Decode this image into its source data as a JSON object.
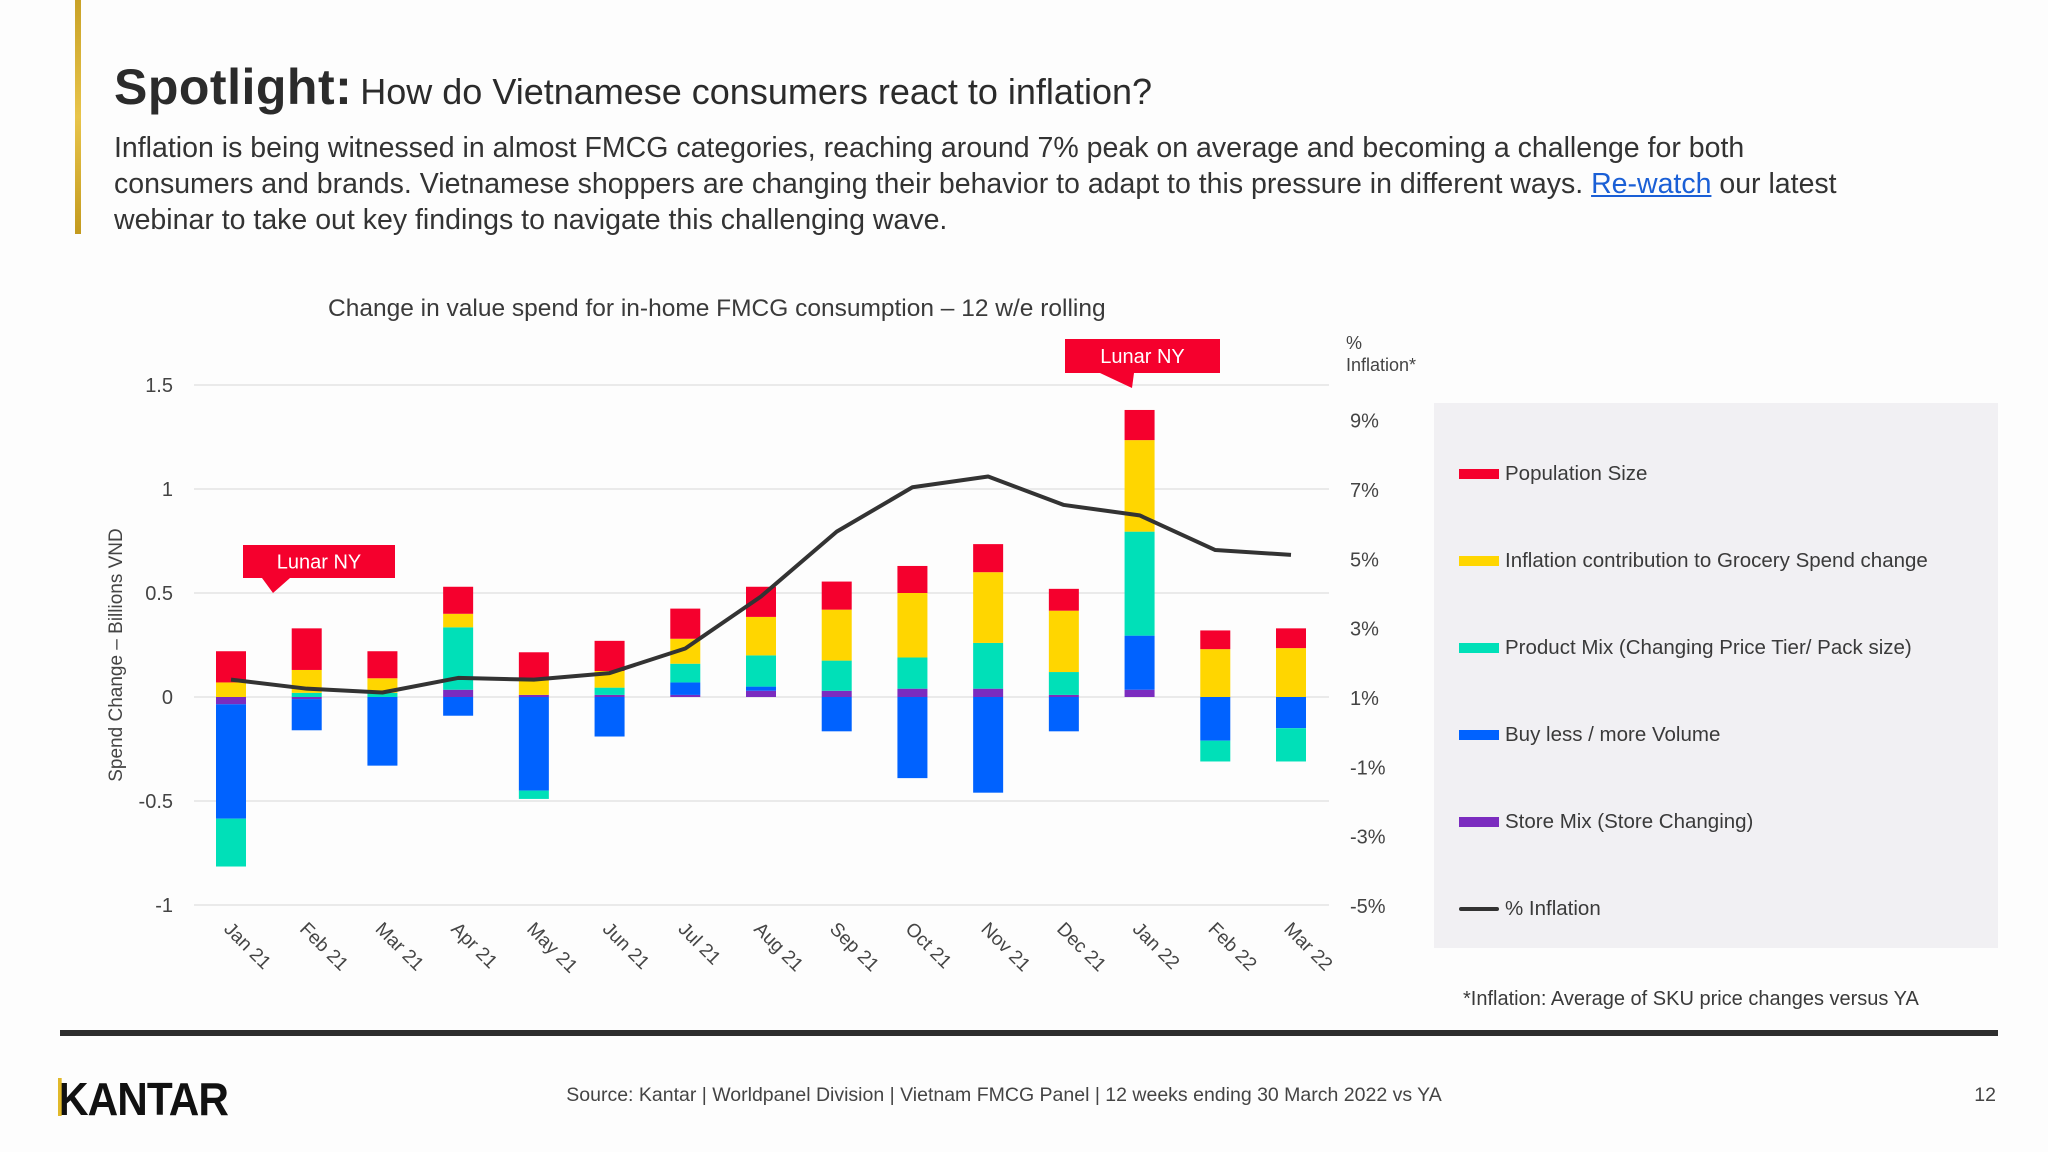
{
  "header": {
    "title_bold": "Spotlight:",
    "title_rest": "How do Vietnamese consumers react to inflation?",
    "paragraph_line1": "Inflation is being witnessed in almost FMCG categories, reaching around 7% peak on average and becoming a challenge for both",
    "paragraph_line2_before": "consumers and brands. Vietnamese shoppers are changing their behavior to adapt to this pressure in different ways. ",
    "paragraph_link": "Re-watch",
    "paragraph_line2_after": " our latest",
    "paragraph_line3": "webinar to take out key findings to navigate this challenging wave."
  },
  "chart_data": {
    "type": "bar",
    "stacked": true,
    "title": "Change in value spend for in-home FMCG consumption – 12 w/e rolling",
    "ylabel": "Spend Change – Billions VND",
    "y2label": "% Inflation*",
    "ylim": [
      -1,
      1.5
    ],
    "yticks": [
      "1.5",
      "1",
      "0.5",
      "0",
      "-0.5",
      "-1"
    ],
    "y2ticks": [
      "9%",
      "7%",
      "5%",
      "3%",
      "1%",
      "-1%",
      "-3%",
      "-5%"
    ],
    "y2lim": [
      -5,
      10
    ],
    "grid": true,
    "legend_position": "right",
    "categories": [
      "Jan 21",
      "Feb 21",
      "Mar 21",
      "Apr 21",
      "May 21",
      "Jun 21",
      "Jul 21",
      "Aug 21",
      "Sep 21",
      "Oct 21",
      "Nov 21",
      "Dec 21",
      "Jan 22",
      "Feb 22",
      "Mar 22"
    ],
    "series": [
      {
        "name": "Store Mix (Store Changing)",
        "color": "#7b2cbf",
        "values": [
          -0.035,
          -0.01,
          0,
          0.035,
          0.01,
          0.01,
          0.01,
          0.03,
          0.03,
          0.04,
          0.04,
          0.01,
          0.035,
          0,
          0
        ]
      },
      {
        "name": "Buy less / more Volume",
        "color": "#0062ff",
        "values": [
          -0.55,
          -0.15,
          -0.33,
          -0.09,
          -0.45,
          -0.19,
          0.06,
          0.02,
          -0.165,
          -0.39,
          -0.46,
          -0.165,
          0.26,
          -0.21,
          -0.15
        ]
      },
      {
        "name": "Product Mix (Changing Price Tier/ Pack size)",
        "color": "#00e0b8",
        "values": [
          -0.23,
          0.02,
          0.02,
          0.3,
          -0.04,
          0.035,
          0.09,
          0.15,
          0.145,
          0.15,
          0.22,
          0.11,
          0.5,
          -0.1,
          -0.16
        ]
      },
      {
        "name": "Inflation contribution to Grocery Spend change",
        "color": "#ffd600",
        "values": [
          0.07,
          0.11,
          0.07,
          0.065,
          0.07,
          0.08,
          0.12,
          0.185,
          0.245,
          0.31,
          0.34,
          0.295,
          0.44,
          0.23,
          0.235
        ]
      },
      {
        "name": "Population Size",
        "color": "#f5002d",
        "values": [
          0.15,
          0.2,
          0.13,
          0.13,
          0.135,
          0.145,
          0.145,
          0.145,
          0.135,
          0.13,
          0.135,
          0.105,
          0.145,
          0.09,
          0.095
        ]
      }
    ],
    "line": {
      "name": "% Inflation",
      "color": "#333333",
      "axis": "right",
      "values": [
        1.5,
        1.24,
        1.13,
        1.55,
        1.5,
        1.69,
        2.4,
        3.9,
        5.77,
        7.05,
        7.36,
        6.54,
        6.24,
        5.24,
        5.1
      ]
    },
    "annotations": [
      {
        "text": "Lunar NY",
        "category": "Feb 21"
      },
      {
        "text": "Lunar NY",
        "category": "Jan 22"
      }
    ],
    "footnote": "*Inflation: Average of SKU price changes versus YA"
  },
  "legend": [
    {
      "label": "Population Size",
      "color": "#f5002d",
      "kind": "bar"
    },
    {
      "label": "Inflation contribution to Grocery Spend change",
      "color": "#ffd600",
      "kind": "bar"
    },
    {
      "label": "Product Mix (Changing Price Tier/ Pack size)",
      "color": "#00e0b8",
      "kind": "bar"
    },
    {
      "label": "Buy less / more Volume",
      "color": "#0062ff",
      "kind": "bar"
    },
    {
      "label": "Store Mix (Store Changing)",
      "color": "#7b2cbf",
      "kind": "bar"
    },
    {
      "label": "% Inflation",
      "color": "#333333",
      "kind": "line"
    }
  ],
  "footer": {
    "logo": "KANTAR",
    "source": "Source: Kantar | Worldpanel Division | Vietnam FMCG Panel | 12 weeks ending 30 March 2022 vs YA",
    "page": "12"
  }
}
